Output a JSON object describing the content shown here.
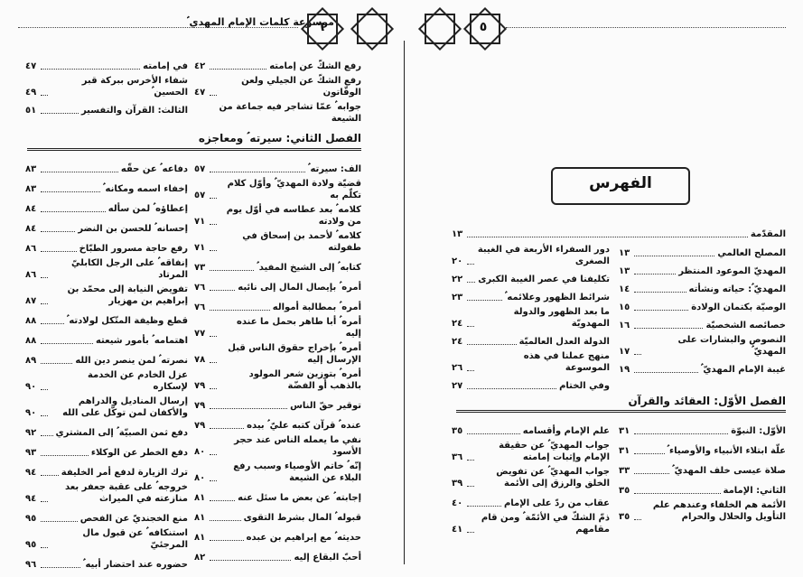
{
  "page_6": {
    "running_title": "موسوعة كلمات الإمام المهدي ؑ",
    "page_number": "٦",
    "top": {
      "right_column": [
        {
          "title": "رفع الشكّ عن إمامته",
          "page": "٤٢"
        },
        {
          "title": "رفع الشكّ عن الجيلي ولعن الوقّاتون",
          "page": "٤٧"
        },
        {
          "title": "جوابه ؑ عمّا تشاجر فيه جماعة من الشيعة"
        }
      ],
      "left_column": [
        {
          "title": "في إمامته",
          "page": "٤٧"
        },
        {
          "title": "شفاء الأخرس ببركة قبر الحسين ؑ",
          "page": "٤٩"
        },
        {
          "title": "الثالث: القرآن والتفسير",
          "page": "٥١"
        }
      ]
    },
    "chapter": "الفصل الثاني: سيرته ؑ ومعاجزه",
    "chapter_entries": {
      "right_column": [
        {
          "title": "الف: سيرته ؑ",
          "page": "٥٧"
        },
        {
          "title": "قضيّة ولادة المهديّ ؑ وأوّل كلام تكلّم به",
          "page": "٥٧"
        },
        {
          "title": "كلامه ؑ بعد عطاسه في أوّل يوم من ولادته",
          "page": "٧١"
        },
        {
          "title": "كلامه ؑ لأحمد بن إسحاق في طفولته",
          "page": "٧١"
        },
        {
          "title": "كتابه ؑ إلى الشيخ المفيد ؑ",
          "page": "٧٣"
        },
        {
          "title": "أمره ؑ بإيصال المال إلى نائبه",
          "page": "٧٦"
        },
        {
          "title": "أمره ؑ بمطالبة أمواله",
          "page": "٧٦"
        },
        {
          "title": "أمره ؑ أبا طاهر بحمل ما عنده إليه",
          "page": "٧٧"
        },
        {
          "title": "أمره ؑ بإخراج حقوق الناس قبل الإرسال إليه",
          "page": "٧٨"
        },
        {
          "title": "أمره ؑ بتوزين شعر المولود بالذهب أو الفضّة",
          "page": "٧٩"
        },
        {
          "title": "توقير حقّ الناس",
          "page": "٧٩"
        },
        {
          "title": "عنده ؑ قرآن كتبه عليّ ؑ بيده",
          "page": "٧٩"
        },
        {
          "title": "نفي ما يعمله الناس عند حجر الأسود",
          "page": "٨٠"
        },
        {
          "title": "إنّه ؑ خاتم الأوصياء وسبب رفع البلاء عن الشيعة",
          "page": "٨٠"
        },
        {
          "title": "إجابته ؑ عن بعض ما سئل عنه",
          "page": "٨١"
        },
        {
          "title": "قبوله ؑ المال بشرط التقوى",
          "page": "٨١"
        },
        {
          "title": "حديثه ؑ مع إبراهيم بن عبده",
          "page": "٨١"
        },
        {
          "title": "أحبّ البقاع إليه",
          "page": "٨٢"
        }
      ],
      "left_column": [
        {
          "title": "دفاعه ؑ عن حقّه",
          "page": "٨٣"
        },
        {
          "title": "إخفاء اسمه ومكانه ؑ",
          "page": "٨٣"
        },
        {
          "title": "إعطاؤه ؑ لمن سأله",
          "page": "٨٤"
        },
        {
          "title": "إحسانه ؑ للحسن بن النضر",
          "page": "٨٤"
        },
        {
          "title": "رفع حاجة مسرور الطبّاخ",
          "page": "٨٦"
        },
        {
          "title": "إنفاقه ؑ على الرجل الكابليّ المرتاد",
          "page": "٨٦"
        },
        {
          "title": "تفويض النيابة إلى محمّد بن إبراهيم بن مهزيار",
          "page": "٨٧"
        },
        {
          "title": "قطع وظيفة المتّكل لولادته ؑ",
          "page": "٨٨"
        },
        {
          "title": "اهتمامه ؑ بأمور شيعته",
          "page": "٨٨"
        },
        {
          "title": "نصرته ؑ لمن ينصر دين الله",
          "page": "٨٩"
        },
        {
          "title": "عزل الخادم عن الخدمة لإسكاره",
          "page": "٩٠"
        },
        {
          "title": "إرسال المناديل والدراهم والأكفان لمن توكّل على الله",
          "page": "٩٠"
        },
        {
          "title": "دفع ثمن الصبيّة ؑ إلى المشتري",
          "page": "٩٢"
        },
        {
          "title": "دفع الخطر عن الوكلاء",
          "page": "٩٣"
        },
        {
          "title": "ترك الزيارة لدفع أمر الخليفة",
          "page": "٩٤"
        },
        {
          "title": "خروجه ؑ على عقبة جعفر بعد منازعته في الميراث",
          "page": "٩٤"
        },
        {
          "title": "منع الخجنديّ عن الفحص",
          "page": "٩٥"
        },
        {
          "title": "استنكافه ؑ عن قبول مال المرجئيّ",
          "page": "٩٥"
        },
        {
          "title": "حضوره عند احتضار أبيه ؑ",
          "page": "٩٦"
        }
      ]
    }
  },
  "page_5": {
    "page_number": "٥",
    "title": "الفهرس",
    "intro": {
      "title": "المقدّمة",
      "page": "١٣"
    },
    "front": {
      "right_column": [
        {
          "title": "المصلح العالمي",
          "page": "١٣"
        },
        {
          "title": "المهديّ الموعود المنتظر",
          "page": "١٣"
        },
        {
          "title": "المهديّ ؑ: حياته ونشأته",
          "page": "١٤"
        },
        {
          "title": "الوصيّة بكتمان الولادة",
          "page": "١٥"
        },
        {
          "title": "خصائصه الشخصيّة",
          "page": "١٦"
        },
        {
          "title": "النصوص والبشارات على المهديّ ؑ",
          "page": "١٧"
        },
        {
          "title": "غيبة الإمام المهديّ ؑ",
          "page": "١٩"
        }
      ],
      "left_column": [
        {
          "title": "دور السفراء الأربعة في الغيبة الصغرى",
          "page": "٢٠"
        },
        {
          "title": "تكليفنا في عصر الغيبة الكبرى",
          "page": "٢٢"
        },
        {
          "title": "شرائط الظهور وعلائمه ؑ",
          "page": "٢٣"
        },
        {
          "title": "ما بعد الظهور والدولة المهدويّة",
          "page": "٢٤"
        },
        {
          "title": "الدولة العدل العالميّة",
          "page": "٢٤"
        },
        {
          "title": "منهج عملنا في هذه الموسوعة",
          "page": "٢٦"
        },
        {
          "title": "وفي الختام",
          "page": "٢٧"
        }
      ]
    },
    "chapter": "الفصل الأوّل: العقائد والقرآن",
    "chapter_entries": {
      "right_column": [
        {
          "title": "الأوّل: النبوّة",
          "page": "٣١"
        },
        {
          "title": "علّة ابتلاء الأنبياء والأوصياء ؑ",
          "page": "٣١"
        },
        {
          "title": "صلاة عيسى خلف المهديّ ؑ",
          "page": "٣٣"
        },
        {
          "title": "الثاني: الإمامة",
          "page": "٣٥"
        },
        {
          "title": "الأئمة هم الخلفاء وعندهم علم التأويل والحلال والحرام",
          "page": "٣٥"
        }
      ],
      "left_column": [
        {
          "title": "علم الإمام وأقسامه",
          "page": "٣٥"
        },
        {
          "title": "جواب المهديّ ؑ عن حقيقة الإمام وإثبات إمامته",
          "page": "٣٦"
        },
        {
          "title": "جواب المهديّ ؑ عن تفويض الخلق والرزق إلى الأئمة",
          "page": "٣٩"
        },
        {
          "title": "عقاب من ردّ على الإمام",
          "page": "٤٠"
        },
        {
          "title": "ذمّ الشكّ في الأئمّة ؑ ومن قام مقامهم",
          "page": "٤١"
        }
      ]
    }
  }
}
